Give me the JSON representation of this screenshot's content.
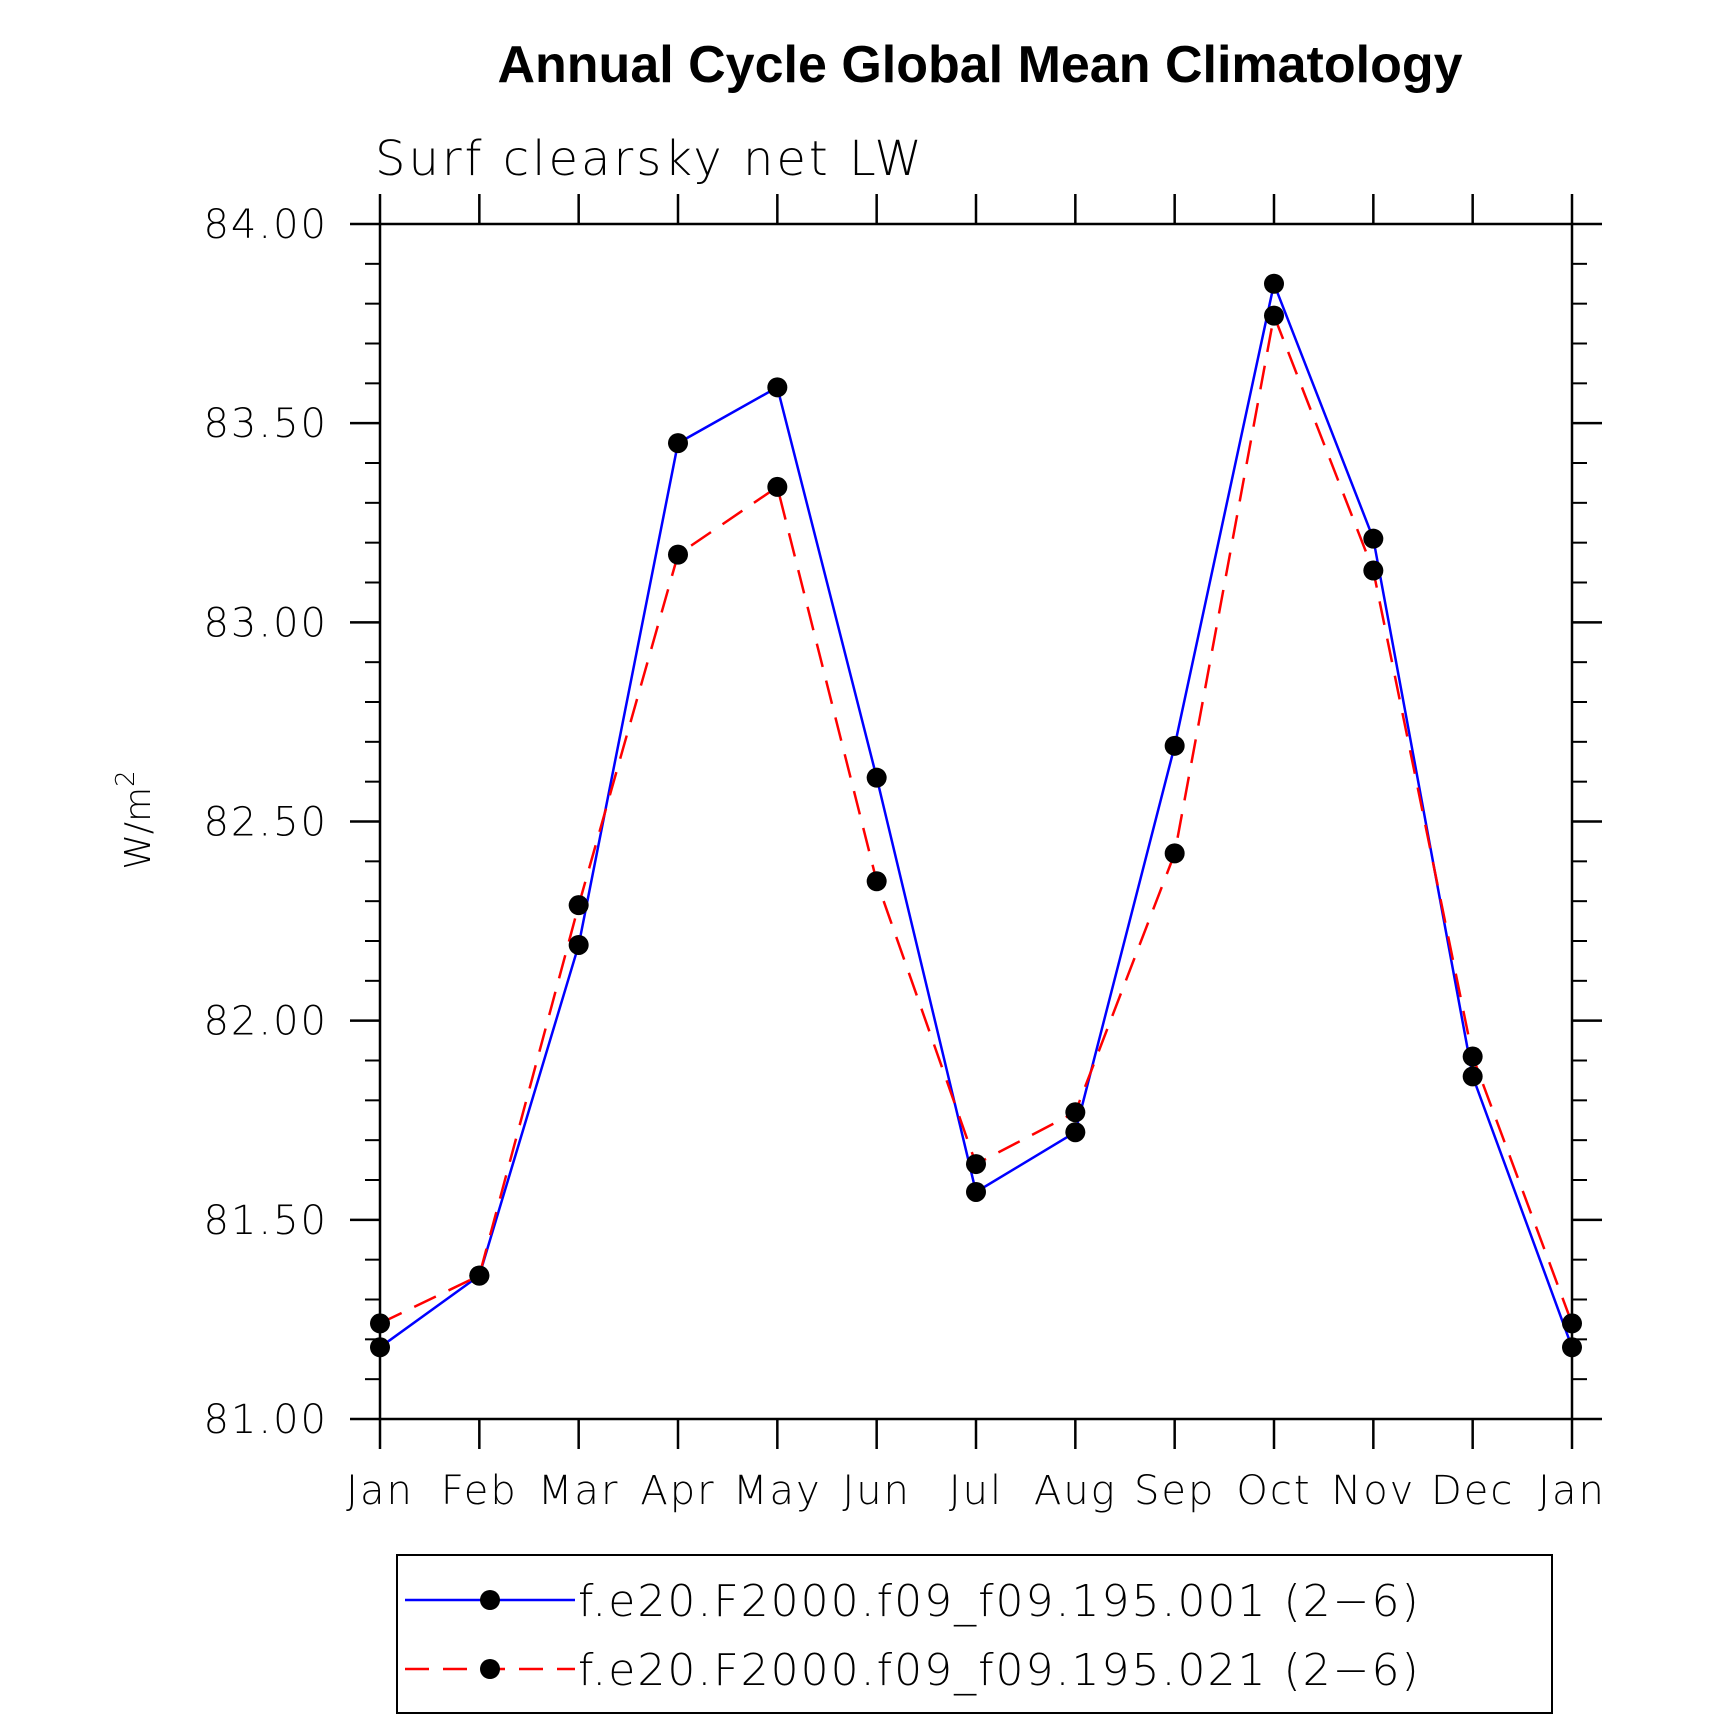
{
  "chart_data": {
    "type": "line",
    "title": "Annual Cycle Global Mean Climatology",
    "subtitle": "Surf clearsky net LW",
    "ylabel_base": "W/m",
    "ylabel_sup": "2",
    "ylim": [
      81.0,
      84.0
    ],
    "yticks": [
      "81.00",
      "81.50",
      "82.00",
      "82.50",
      "83.00",
      "83.50",
      "84.00"
    ],
    "categories": [
      "Jan",
      "Feb",
      "Mar",
      "Apr",
      "May",
      "Jun",
      "Jul",
      "Aug",
      "Sep",
      "Oct",
      "Nov",
      "Dec",
      "Jan"
    ],
    "grid": false,
    "legend_position": "bottom",
    "series": [
      {
        "name": "f.e20.F2000.f09_f09.195.001 (2−6)",
        "color": "#0000ff",
        "dash": "solid",
        "values": [
          81.18,
          81.36,
          82.19,
          83.45,
          83.59,
          82.61,
          81.57,
          81.72,
          82.69,
          83.85,
          83.21,
          81.86,
          81.18
        ]
      },
      {
        "name": "f.e20.F2000.f09_f09.195.021 (2−6)",
        "color": "#ff0000",
        "dash": "dashed",
        "values": [
          81.24,
          81.36,
          82.29,
          83.17,
          83.34,
          82.35,
          81.64,
          81.77,
          82.42,
          83.77,
          83.13,
          81.91,
          81.24
        ]
      }
    ]
  }
}
